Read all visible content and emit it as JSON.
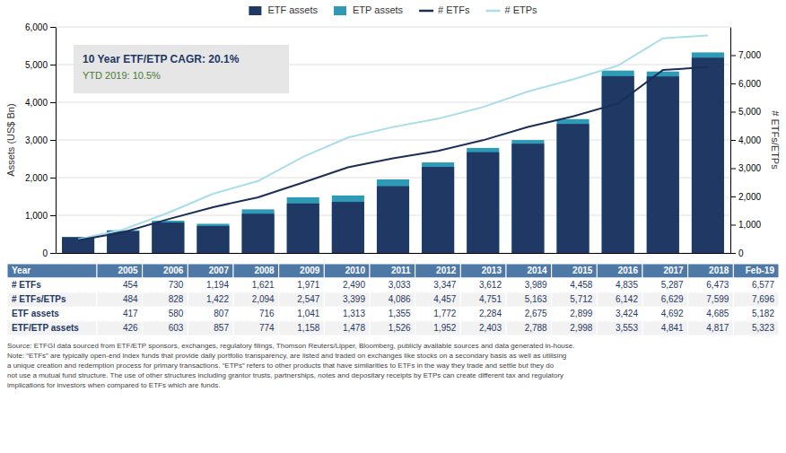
{
  "chart_data": {
    "type": "bar",
    "categories": [
      "2005",
      "2006",
      "2007",
      "2008",
      "2009",
      "2010",
      "2011",
      "2012",
      "2013",
      "2014",
      "2015",
      "2016",
      "2017",
      "2018",
      "Feb-19"
    ],
    "series": [
      {
        "name": "ETF assets",
        "type": "bar",
        "color": "#1f3864",
        "values": [
          417,
          580,
          807,
          716,
          1041,
          1313,
          1355,
          1772,
          2284,
          2675,
          2899,
          3424,
          4692,
          4685,
          5182
        ]
      },
      {
        "name": "ETP assets",
        "type": "bar",
        "color": "#2e9ab5",
        "values": [
          426,
          603,
          857,
          774,
          1158,
          1478,
          1526,
          1952,
          2403,
          2788,
          2998,
          3553,
          4841,
          4817,
          5323
        ]
      },
      {
        "name": "# ETFs",
        "type": "line",
        "axis": "y2",
        "color": "#1a2e58",
        "values": [
          454,
          730,
          1194,
          1621,
          1971,
          2490,
          3033,
          3347,
          3612,
          3989,
          4458,
          4835,
          5287,
          6473,
          6577
        ]
      },
      {
        "name": "# ETPs",
        "type": "line",
        "axis": "y2",
        "color": "#a8dde9",
        "values": [
          484,
          828,
          1422,
          2094,
          2547,
          3399,
          4086,
          4457,
          4751,
          5163,
          5712,
          6142,
          6629,
          7599,
          7696
        ]
      }
    ],
    "ylabel": "Assets (US$ Bn)",
    "y2label": "# ETFs/ETPs",
    "ylim": [
      0,
      6000
    ],
    "yticks": [
      0,
      {
        "value": 1000,
        "label": "1,000"
      },
      {
        "value": 2000,
        "label": "2,000"
      },
      {
        "value": 3000,
        "label": "3,000"
      },
      {
        "value": 4000,
        "label": "4,000"
      },
      {
        "value": 5000,
        "label": "5,000"
      },
      {
        "value": 6000,
        "label": "6,000"
      }
    ],
    "y2lim": [
      0,
      8000
    ],
    "y2ticks": [
      0,
      {
        "value": 1000,
        "label": "1,000"
      },
      {
        "value": 2000,
        "label": "2,000"
      },
      {
        "value": 3000,
        "label": "3,000"
      },
      {
        "value": 4000,
        "label": "4,000"
      },
      {
        "value": 5000,
        "label": "5,000"
      },
      {
        "value": 6000,
        "label": "6,000"
      },
      {
        "value": 7000,
        "label": "7,000"
      }
    ],
    "grid": true,
    "legend": "top",
    "tick_labels": "y",
    "annotations": [
      "10 Year ETF/ETP CAGR: 20.1%",
      "YTD 2019: 10.5%"
    ],
    "table": {
      "header": "Year",
      "rows": [
        {
          "name": "# ETFs",
          "values": [
            454,
            730,
            1194,
            1621,
            1971,
            2490,
            3033,
            3347,
            3612,
            3989,
            4458,
            4835,
            5287,
            6473,
            6577
          ],
          "value_labels": [
            "454",
            "730",
            "1,194",
            "1,621",
            "1,971",
            "2,490",
            "3,033",
            "3,347",
            "3,612",
            "3,989",
            "4,458",
            "4,835",
            "5,287",
            "6,473",
            "6,577"
          ]
        },
        {
          "name": "# ETFs/ETPs",
          "values": [
            484,
            828,
            1422,
            2094,
            2547,
            3399,
            4086,
            4457,
            4751,
            5163,
            5712,
            6142,
            6629,
            7599,
            7696
          ],
          "value_labels": [
            "484",
            "828",
            "1,422",
            "2,094",
            "2,547",
            "3,399",
            "4,086",
            "4,457",
            "4,751",
            "5,163",
            "5,712",
            "6,142",
            "6,629",
            "7,599",
            "7,696"
          ]
        },
        {
          "name": "ETF assets",
          "values": [
            417,
            580,
            807,
            716,
            1041,
            1313,
            1355,
            1772,
            2284,
            2675,
            2899,
            3424,
            4692,
            4685,
            5182
          ],
          "value_labels": [
            "417",
            "580",
            "807",
            "716",
            "1,041",
            "1,313",
            "1,355",
            "1,772",
            "2,284",
            "2,675",
            "2,899",
            "3,424",
            "4,692",
            "4,685",
            "5,182"
          ]
        },
        {
          "name": "ETF/ETP assets",
          "values": [
            426,
            603,
            857,
            774,
            1158,
            1478,
            1526,
            1952,
            2403,
            2788,
            2998,
            3553,
            4841,
            4817,
            5323
          ],
          "value_labels": [
            "426",
            "603",
            "857",
            "774",
            "1,158",
            "1,478",
            "1,526",
            "1,952",
            "2,403",
            "2,788",
            "2,998",
            "3,553",
            "4,841",
            "4,817",
            "5,323"
          ]
        }
      ]
    },
    "source": "Source: ETFGI data sourced from ETF/ETP sponsors, exchanges, regulatory filings, Thomson Reuters/Lipper, Bloomberg, publicly available sources and data generated in-house.\nNote: “ETFs” are typically open-end index funds that provide daily portfolio transparency, are listed and traded on exchanges like stocks on a secondary basis as well as utilising\na unique creation and redemption process for primary transactions. “ETPs” refers to other products that have similarities to ETFs in the way they trade and settle but they do\nnot use a mutual fund structure. The use of other structures including grantor trusts, partnerships, notes and depositary receipts by ETPs can create different tax and regulatory\nimplications for investors when compared to ETFs which are funds."
  }
}
